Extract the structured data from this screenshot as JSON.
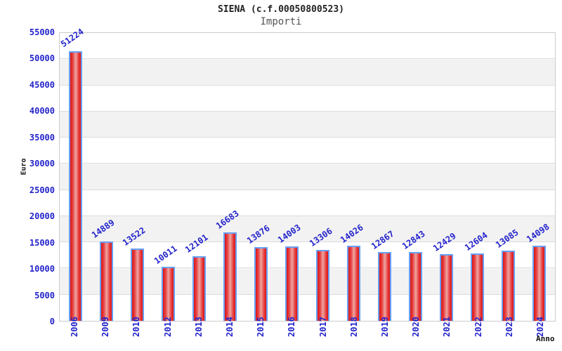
{
  "title": "SIENA (c.f.00050800523)",
  "subtitle": "Importi",
  "chart_data": {
    "type": "bar",
    "title": "SIENA (c.f.00050800523)",
    "subtitle": "Importi",
    "xlabel": "Anno",
    "ylabel": "Euro",
    "categories": [
      "2006",
      "2009",
      "2010",
      "2012",
      "2013",
      "2014",
      "2015",
      "2016",
      "2017",
      "2018",
      "2019",
      "2020",
      "2021",
      "2022",
      "2023",
      "2024"
    ],
    "values": [
      51224,
      14889,
      13522,
      10011,
      12101,
      16683,
      13876,
      14003,
      13306,
      14026,
      12867,
      12843,
      12429,
      12604,
      13085,
      14098
    ],
    "ylim": [
      0,
      55000
    ],
    "y_tick_step": 5000,
    "y_tick_labels": [
      "0",
      "5000",
      "10000",
      "15000",
      "20000",
      "25000",
      "30000",
      "35000",
      "40000",
      "45000",
      "50000",
      "55000"
    ],
    "grid": "horizontal-bands-alternating",
    "legend": "none",
    "bar_value_labels_shown": true,
    "colors": {
      "tick_label": "#2323cc",
      "value_label": "#2323cc",
      "bar_border": "#66a0f5",
      "bar_fill_edge": "#dd1111",
      "bar_fill_center": "#eda6a2",
      "band_gray": "#f2f2f2",
      "band_white": "#ffffff",
      "gridline": "#dcdcdc",
      "plot_border": "#cccccc",
      "title_color": "#222222",
      "subtitle_color": "#555555",
      "axis_title_color": "#111111"
    }
  }
}
